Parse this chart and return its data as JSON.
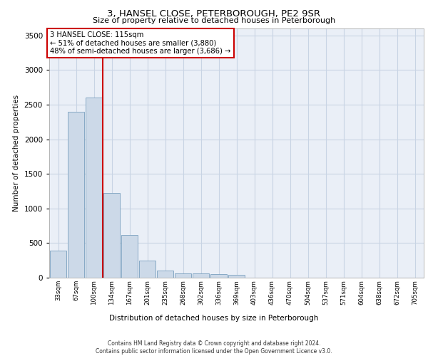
{
  "title1": "3, HANSEL CLOSE, PETERBOROUGH, PE2 9SR",
  "title2": "Size of property relative to detached houses in Peterborough",
  "xlabel": "Distribution of detached houses by size in Peterborough",
  "ylabel": "Number of detached properties",
  "categories": [
    "33sqm",
    "67sqm",
    "100sqm",
    "134sqm",
    "167sqm",
    "201sqm",
    "235sqm",
    "268sqm",
    "302sqm",
    "336sqm",
    "369sqm",
    "403sqm",
    "436sqm",
    "470sqm",
    "504sqm",
    "537sqm",
    "571sqm",
    "604sqm",
    "638sqm",
    "672sqm",
    "705sqm"
  ],
  "values": [
    390,
    2400,
    2600,
    1220,
    620,
    250,
    100,
    65,
    65,
    55,
    45,
    0,
    0,
    0,
    0,
    0,
    0,
    0,
    0,
    0,
    0
  ],
  "bar_color": "#ccd9e8",
  "bar_edge_color": "#7aa0be",
  "red_line_x": 2.5,
  "annotation_text": "3 HANSEL CLOSE: 115sqm\n← 51% of detached houses are smaller (3,880)\n48% of semi-detached houses are larger (3,686) →",
  "annotation_box_color": "#ffffff",
  "annotation_box_edge": "#cc0000",
  "red_line_color": "#cc0000",
  "ylim": [
    0,
    3600
  ],
  "yticks": [
    0,
    500,
    1000,
    1500,
    2000,
    2500,
    3000,
    3500
  ],
  "grid_color": "#c8d4e4",
  "bg_color": "#eaeff7",
  "footer1": "Contains HM Land Registry data © Crown copyright and database right 2024.",
  "footer2": "Contains public sector information licensed under the Open Government Licence v3.0."
}
